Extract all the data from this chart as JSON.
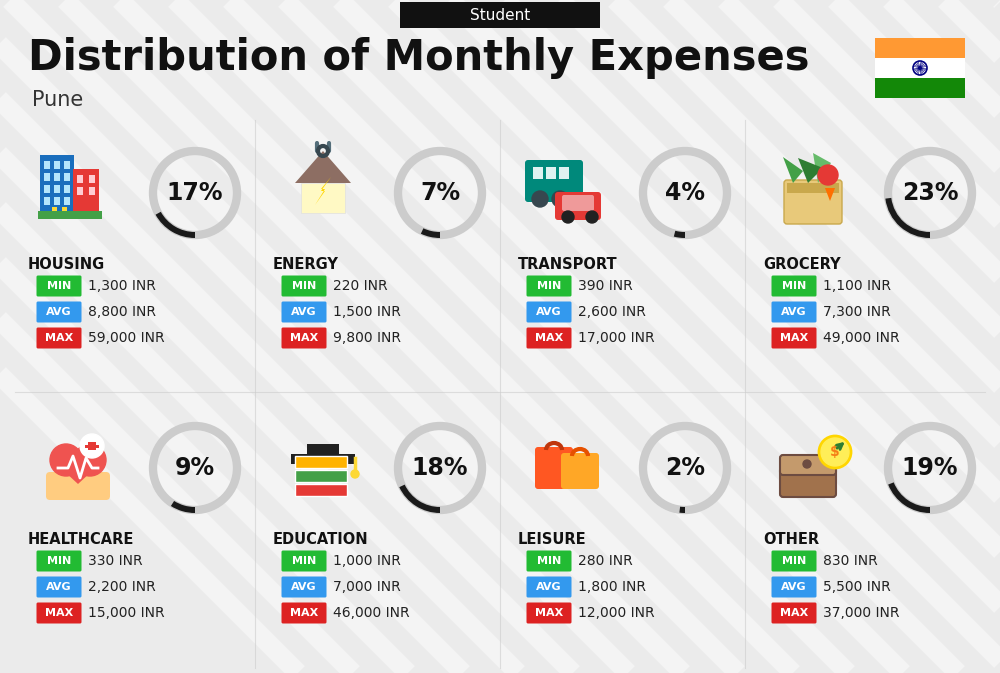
{
  "title": "Distribution of Monthly Expenses",
  "subtitle": "Student",
  "location": "Pune",
  "bg_color": "#ebebeb",
  "categories": [
    {
      "name": "HOUSING",
      "pct": 17,
      "min_val": "1,300 INR",
      "avg_val": "8,800 INR",
      "max_val": "59,000 INR",
      "row": 0,
      "col": 0
    },
    {
      "name": "ENERGY",
      "pct": 7,
      "min_val": "220 INR",
      "avg_val": "1,500 INR",
      "max_val": "9,800 INR",
      "row": 0,
      "col": 1
    },
    {
      "name": "TRANSPORT",
      "pct": 4,
      "min_val": "390 INR",
      "avg_val": "2,600 INR",
      "max_val": "17,000 INR",
      "row": 0,
      "col": 2
    },
    {
      "name": "GROCERY",
      "pct": 23,
      "min_val": "1,100 INR",
      "avg_val": "7,300 INR",
      "max_val": "49,000 INR",
      "row": 0,
      "col": 3
    },
    {
      "name": "HEALTHCARE",
      "pct": 9,
      "min_val": "330 INR",
      "avg_val": "2,200 INR",
      "max_val": "15,000 INR",
      "row": 1,
      "col": 0
    },
    {
      "name": "EDUCATION",
      "pct": 18,
      "min_val": "1,000 INR",
      "avg_val": "7,000 INR",
      "max_val": "46,000 INR",
      "row": 1,
      "col": 1
    },
    {
      "name": "LEISURE",
      "pct": 2,
      "min_val": "280 INR",
      "avg_val": "1,800 INR",
      "max_val": "12,000 INR",
      "row": 1,
      "col": 2
    },
    {
      "name": "OTHER",
      "pct": 19,
      "min_val": "830 INR",
      "avg_val": "5,500 INR",
      "max_val": "37,000 INR",
      "row": 1,
      "col": 3
    }
  ],
  "min_color": "#22bb33",
  "avg_color": "#3399ee",
  "max_color": "#dd2222",
  "arc_dark": "#1a1a1a",
  "arc_light": "#cccccc",
  "header_box_color": "#111111",
  "title_color": "#111111",
  "location_color": "#333333",
  "cat_name_color": "#111111",
  "val_color": "#222222"
}
